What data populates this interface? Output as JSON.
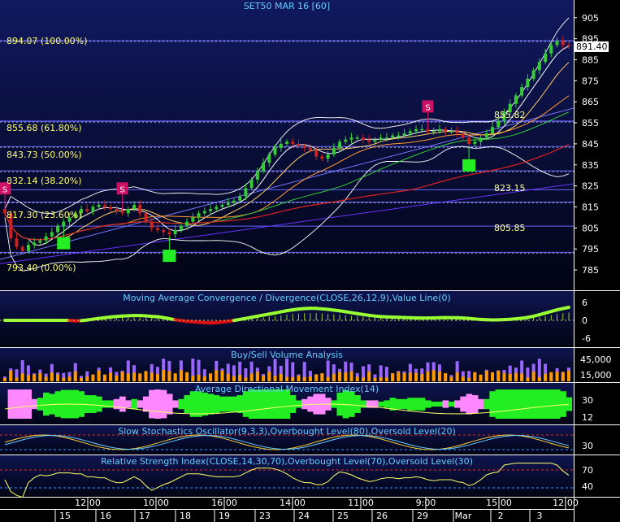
{
  "colors": {
    "panel_bg_top": "#10185e",
    "panel_bg_bottom": "#020418",
    "axis_text": "#ffffff",
    "title_text": "#66ccff",
    "fib_text": "#ffff66",
    "fib_line": "#6666ff",
    "level_text": "#ffff99",
    "up_candle": "#33cc33",
    "down_candle": "#cc2222",
    "bollinger": "#ffffff",
    "signal_green": "#22ee22",
    "signal_magenta": "#cc1166",
    "macd_pos": "#99ff33",
    "macd_neg": "#dd1111",
    "vol_buy": "#ff9900",
    "vol_sell": "#9966ff",
    "adx_green": "#22ee22",
    "adx_pink": "#ff88ff"
  },
  "main": {
    "title": "SET50 MAR 16   [60]",
    "last_price_label": "891.40",
    "fib_levels": [
      {
        "label": "894.07 (100.00%)",
        "value": 894.07
      },
      {
        "label": "855.68 (61.80%)",
        "value": 855.68
      },
      {
        "label": "843.73 (50.00%)",
        "value": 843.73
      },
      {
        "label": "832.14 (38.20%)",
        "value": 832.14
      },
      {
        "label": "817.30 (23.60%)",
        "value": 817.3
      },
      {
        "label": "793.40 (0.00%)",
        "value": 793.4
      }
    ],
    "level_labels": [
      {
        "label": "855.82",
        "value": 855.82
      },
      {
        "label": "823.15",
        "value": 823.15
      },
      {
        "label": "805.85",
        "value": 805.85
      }
    ],
    "signal_s": "S"
  },
  "panels": {
    "macd": {
      "title": "Moving Average Convergence / Divergence(CLOSE,26,12,9),Value Line(0)",
      "ticks": [
        "6",
        "0",
        "-6"
      ]
    },
    "volume": {
      "title": "Buy/Sell Volume Analysis",
      "ticks": [
        "45,000",
        "15,000"
      ]
    },
    "adx": {
      "title": "Average Directional Movement Index(14)",
      "ticks": [
        "30",
        "12"
      ]
    },
    "stoch": {
      "title": "Slow Stochastics Oscillator(9,3,3),Overbought Level(80),Oversold Level(20)",
      "ticks": [
        "30"
      ]
    },
    "rsi": {
      "title": "Relative Strength Index(CLOSE,14,30,70),Overbought Level(70),Oversold Level(30)",
      "ticks": [
        "70",
        "40"
      ]
    }
  },
  "time_axis": {
    "times": [
      "12:00",
      "10:00",
      "16:00",
      "14:00",
      "11:00",
      "9:00",
      "15:00",
      "12:00"
    ],
    "dates": [
      "15",
      "16",
      "17",
      "18",
      "19",
      "23",
      "24",
      "25",
      "26",
      "29",
      "Mar",
      "2",
      "3"
    ]
  },
  "chart_data": {
    "type": "candlestick",
    "title": "SET50 MAR 16 [60]",
    "ylim": [
      780,
      908
    ],
    "yticks": [
      905,
      895,
      885,
      875,
      865,
      855,
      845,
      835,
      825,
      815,
      805,
      795,
      785
    ],
    "close_series": [
      812,
      800,
      796,
      794,
      797,
      798,
      799,
      801,
      803,
      806,
      808,
      810,
      812,
      814,
      813,
      815,
      816,
      815,
      814,
      813,
      812,
      814,
      816,
      812,
      808,
      805,
      804,
      803,
      802,
      804,
      806,
      808,
      810,
      812,
      813,
      814,
      815,
      816,
      817,
      818,
      820,
      824,
      828,
      832,
      836,
      840,
      843,
      845,
      846,
      845,
      844,
      843,
      842,
      839,
      838,
      840,
      843,
      846,
      847,
      848,
      848,
      847,
      846,
      847,
      848,
      848,
      849,
      849,
      850,
      851,
      852,
      852,
      851,
      851,
      852,
      851,
      851,
      850,
      848,
      845,
      846,
      848,
      850,
      853,
      856,
      860,
      864,
      868,
      872,
      876,
      880,
      884,
      888,
      892,
      894,
      892,
      891.4
    ],
    "signals": [
      {
        "type": "S",
        "bar": 0
      },
      {
        "type": "S",
        "bar": 20
      },
      {
        "type": "S",
        "bar": 72
      },
      {
        "type": "B",
        "bar": 10
      },
      {
        "type": "B",
        "bar": 28
      },
      {
        "type": "B",
        "bar": 79
      }
    ]
  }
}
